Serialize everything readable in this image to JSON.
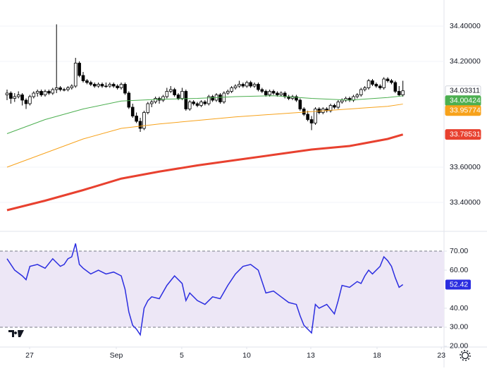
{
  "chart_data": [
    {
      "type": "candlestick",
      "xlim": [
        -1.85,
        114.8
      ],
      "ylim": [
        33.236,
        34.548
      ],
      "yticks": [
        {
          "value": 34.4,
          "label": "34.40000"
        },
        {
          "value": 34.2,
          "label": "34.20000"
        },
        {
          "value": 33.6,
          "label": "33.60000"
        },
        {
          "value": 33.4,
          "label": "33.40000"
        }
      ],
      "up_color": "#ffffff",
      "down_color": "#000000",
      "ohlc": [
        [
          34.01,
          34.04,
          33.98,
          34.02
        ],
        [
          34.02,
          34.03,
          33.96,
          33.99
        ],
        [
          33.99,
          34.02,
          33.97,
          34.0
        ],
        [
          34.0,
          34.03,
          33.99,
          34.01
        ],
        [
          34.01,
          34.02,
          33.95,
          33.98
        ],
        [
          33.98,
          33.99,
          33.93,
          33.96
        ],
        [
          33.96,
          34.01,
          33.95,
          34.0
        ],
        [
          34.0,
          34.03,
          33.99,
          34.02
        ],
        [
          34.02,
          34.04,
          34.0,
          34.03
        ],
        [
          34.03,
          34.04,
          34.0,
          34.01
        ],
        [
          34.01,
          34.04,
          34.0,
          34.03
        ],
        [
          34.03,
          34.04,
          34.01,
          34.02
        ],
        [
          34.02,
          34.05,
          34.01,
          34.04
        ],
        [
          34.04,
          34.41,
          34.02,
          34.05
        ],
        [
          34.05,
          34.06,
          34.03,
          34.04
        ],
        [
          34.04,
          34.05,
          34.03,
          34.04
        ],
        [
          34.04,
          34.06,
          34.03,
          34.05
        ],
        [
          34.05,
          34.07,
          34.04,
          34.06
        ],
        [
          34.06,
          34.22,
          34.05,
          34.19
        ],
        [
          34.19,
          34.2,
          34.11,
          34.12
        ],
        [
          34.12,
          34.14,
          34.08,
          34.09
        ],
        [
          34.09,
          34.1,
          34.07,
          34.08
        ],
        [
          34.08,
          34.09,
          34.06,
          34.07
        ],
        [
          34.07,
          34.08,
          34.05,
          34.06
        ],
        [
          34.06,
          34.08,
          34.05,
          34.07
        ],
        [
          34.07,
          34.08,
          34.05,
          34.06
        ],
        [
          34.06,
          34.08,
          34.05,
          34.06
        ],
        [
          34.06,
          34.08,
          34.05,
          34.07
        ],
        [
          34.07,
          34.08,
          34.05,
          34.06
        ],
        [
          34.06,
          34.07,
          34.04,
          34.05
        ],
        [
          34.05,
          34.08,
          34.04,
          34.07
        ],
        [
          34.07,
          34.08,
          34.01,
          34.02
        ],
        [
          34.02,
          34.03,
          33.93,
          33.94
        ],
        [
          33.94,
          33.96,
          33.88,
          33.89
        ],
        [
          33.89,
          33.91,
          33.85,
          33.86
        ],
        [
          33.86,
          33.88,
          33.8,
          33.82
        ],
        [
          33.82,
          33.92,
          33.81,
          33.91
        ],
        [
          33.91,
          33.97,
          33.9,
          33.96
        ],
        [
          33.96,
          33.98,
          33.94,
          33.97
        ],
        [
          33.97,
          34.0,
          33.96,
          33.99
        ],
        [
          33.99,
          34.0,
          33.96,
          33.98
        ],
        [
          33.98,
          34.01,
          33.97,
          34.0
        ],
        [
          34.0,
          34.05,
          33.99,
          34.03
        ],
        [
          34.03,
          34.06,
          34.02,
          34.04
        ],
        [
          34.04,
          34.05,
          34.0,
          34.01
        ],
        [
          34.01,
          34.02,
          33.98,
          33.99
        ],
        [
          33.99,
          34.05,
          33.98,
          34.03
        ],
        [
          34.03,
          34.04,
          33.92,
          33.93
        ],
        [
          33.93,
          33.98,
          33.92,
          33.97
        ],
        [
          33.97,
          33.98,
          33.95,
          33.96
        ],
        [
          33.96,
          33.97,
          33.94,
          33.95
        ],
        [
          33.95,
          33.98,
          33.94,
          33.97
        ],
        [
          33.97,
          33.98,
          33.95,
          33.96
        ],
        [
          33.96,
          34.01,
          33.95,
          34.0
        ],
        [
          34.0,
          34.01,
          33.97,
          33.98
        ],
        [
          33.98,
          34.02,
          33.97,
          34.01
        ],
        [
          34.01,
          34.02,
          33.96,
          33.97
        ],
        [
          33.97,
          34.03,
          33.96,
          34.02
        ],
        [
          34.02,
          34.04,
          34.01,
          34.03
        ],
        [
          34.03,
          34.06,
          34.02,
          34.05
        ],
        [
          34.05,
          34.07,
          34.04,
          34.06
        ],
        [
          34.06,
          34.09,
          34.05,
          34.07
        ],
        [
          34.07,
          34.08,
          34.05,
          34.06
        ],
        [
          34.06,
          34.09,
          34.05,
          34.08
        ],
        [
          34.08,
          34.09,
          34.05,
          34.06
        ],
        [
          34.06,
          34.08,
          34.05,
          34.07
        ],
        [
          34.07,
          34.08,
          34.03,
          34.04
        ],
        [
          34.04,
          34.05,
          34.02,
          34.03
        ],
        [
          34.03,
          34.04,
          34.0,
          34.01
        ],
        [
          34.01,
          34.04,
          34.0,
          34.03
        ],
        [
          34.03,
          34.04,
          34.01,
          34.02
        ],
        [
          34.02,
          34.03,
          34.0,
          34.01
        ],
        [
          34.01,
          34.03,
          34.0,
          34.02
        ],
        [
          34.02,
          34.03,
          33.99,
          34.0
        ],
        [
          34.0,
          34.01,
          33.98,
          33.99
        ],
        [
          33.99,
          34.01,
          33.98,
          34.0
        ],
        [
          34.0,
          34.01,
          33.97,
          33.98
        ],
        [
          33.98,
          33.99,
          33.92,
          33.93
        ],
        [
          33.93,
          33.94,
          33.89,
          33.9
        ],
        [
          33.9,
          33.92,
          33.86,
          33.87
        ],
        [
          33.87,
          33.89,
          33.81,
          33.85
        ],
        [
          33.85,
          33.94,
          33.84,
          33.93
        ],
        [
          33.93,
          33.94,
          33.9,
          33.91
        ],
        [
          33.91,
          33.94,
          33.9,
          33.93
        ],
        [
          33.93,
          33.94,
          33.91,
          33.92
        ],
        [
          33.92,
          33.96,
          33.91,
          33.95
        ],
        [
          33.95,
          33.96,
          33.93,
          33.94
        ],
        [
          33.94,
          33.98,
          33.93,
          33.97
        ],
        [
          33.97,
          33.99,
          33.96,
          33.98
        ],
        [
          33.98,
          34.0,
          33.97,
          33.99
        ],
        [
          33.99,
          34.0,
          33.97,
          33.98
        ],
        [
          33.98,
          34.01,
          33.97,
          34.0
        ],
        [
          34.0,
          34.02,
          33.99,
          34.01
        ],
        [
          34.01,
          34.05,
          34.0,
          34.04
        ],
        [
          34.04,
          34.06,
          34.03,
          34.05
        ],
        [
          34.05,
          34.1,
          34.04,
          34.09
        ],
        [
          34.09,
          34.1,
          34.06,
          34.07
        ],
        [
          34.07,
          34.08,
          34.05,
          34.06
        ],
        [
          34.06,
          34.07,
          34.04,
          34.05
        ],
        [
          34.05,
          34.11,
          34.04,
          34.1
        ],
        [
          34.1,
          34.11,
          34.08,
          34.09
        ],
        [
          34.09,
          34.1,
          34.07,
          34.08
        ],
        [
          34.08,
          34.09,
          34.02,
          34.03
        ],
        [
          34.03,
          34.06,
          34.0,
          34.01
        ],
        [
          34.01,
          34.09,
          34.0,
          34.03311
        ]
      ],
      "series": [
        {
          "color": "#4caf50",
          "width": 1,
          "x": [
            0,
            10,
            20,
            30,
            40,
            50,
            60,
            70,
            80,
            90,
            100,
            104
          ],
          "values": [
            33.79,
            33.87,
            33.93,
            33.975,
            33.985,
            33.99,
            34.0,
            34.005,
            33.99,
            33.98,
            33.995,
            34.00424
          ]
        },
        {
          "color": "#f7a21b",
          "width": 1,
          "x": [
            0,
            10,
            20,
            30,
            40,
            50,
            60,
            70,
            80,
            90,
            100,
            104
          ],
          "values": [
            33.6,
            33.68,
            33.76,
            33.82,
            33.845,
            33.865,
            33.885,
            33.9,
            33.915,
            33.93,
            33.945,
            33.95774
          ]
        },
        {
          "color": "#e8412f",
          "width": 3,
          "x": [
            0,
            10,
            20,
            30,
            40,
            50,
            60,
            70,
            80,
            90,
            100,
            104
          ],
          "values": [
            33.356,
            33.41,
            33.47,
            33.535,
            33.575,
            33.61,
            33.64,
            33.67,
            33.7,
            33.72,
            33.76,
            33.78531
          ]
        }
      ]
    },
    {
      "type": "line",
      "color": "#2b2de0",
      "band": [
        30,
        70
      ],
      "band_color": "#ede7f6",
      "xlim": [
        -1.85,
        114.8
      ],
      "ylim": [
        19.6,
        80.4
      ],
      "yticks": [
        {
          "value": 70,
          "label": "70.00"
        },
        {
          "value": 60,
          "label": "60.00"
        },
        {
          "value": 40,
          "label": "40.00"
        },
        {
          "value": 30,
          "label": "30.00"
        },
        {
          "value": 20,
          "label": "20.00"
        }
      ],
      "xticks": [
        {
          "value": 5.93,
          "label": "27"
        },
        {
          "value": 28.7,
          "label": "Sep"
        },
        {
          "value": 45.9,
          "label": "5"
        },
        {
          "value": 62.96,
          "label": "10"
        },
        {
          "value": 79.8,
          "label": "13"
        },
        {
          "value": 97.2,
          "label": "18"
        },
        {
          "value": 114.1,
          "label": "23"
        }
      ],
      "x": [
        0,
        2,
        4,
        5,
        6,
        8,
        10,
        12,
        14,
        15,
        16,
        17,
        18,
        19,
        20,
        22,
        24,
        26,
        28,
        30,
        31,
        32,
        33,
        34,
        35,
        36,
        37,
        38,
        40,
        42,
        44,
        46,
        47,
        48,
        50,
        52,
        54,
        56,
        58,
        60,
        62,
        64,
        66,
        68,
        70,
        72,
        74,
        76,
        77,
        78,
        79,
        80,
        81,
        82,
        84,
        86,
        87,
        88,
        90,
        92,
        93,
        94,
        95,
        96,
        98,
        99,
        100,
        101,
        102,
        103,
        104
      ],
      "values": [
        66,
        60,
        57,
        55,
        62,
        63,
        61,
        66,
        62,
        63,
        66,
        67,
        74,
        63,
        61,
        58,
        60,
        58,
        59,
        57,
        50,
        38,
        31,
        29,
        26,
        40,
        44,
        46,
        45,
        52,
        57,
        53,
        44,
        48,
        44,
        42,
        46,
        45,
        52,
        58,
        62,
        63,
        60,
        48,
        49,
        46,
        43,
        42,
        36,
        31,
        29,
        27,
        42,
        40,
        42,
        37,
        44,
        52,
        51,
        54,
        53,
        57,
        60,
        58,
        62,
        67,
        65,
        62,
        56,
        51,
        52.42
      ]
    }
  ]
}
